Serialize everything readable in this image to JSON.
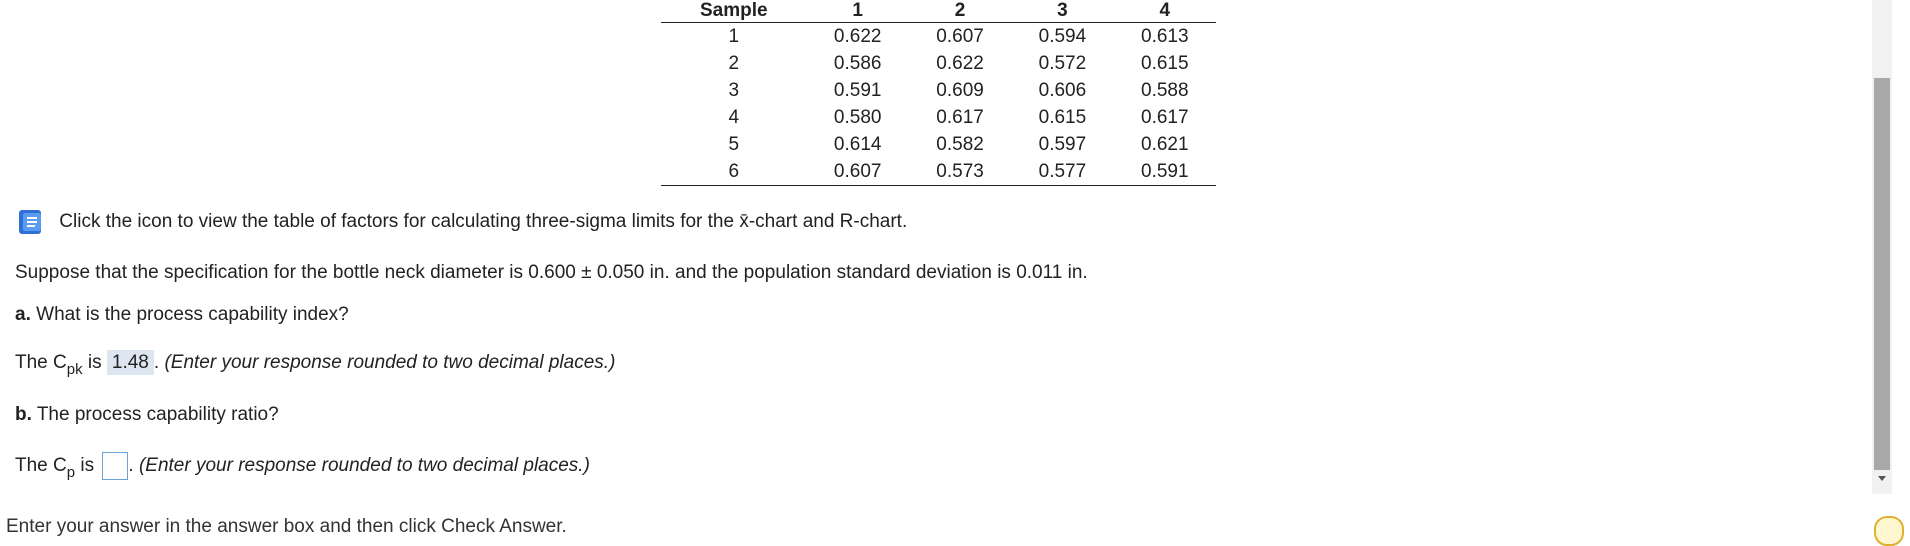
{
  "table": {
    "header": [
      "Sample",
      "1",
      "2",
      "3",
      "4"
    ],
    "rows": [
      [
        "1",
        "0.622",
        "0.607",
        "0.594",
        "0.613"
      ],
      [
        "2",
        "0.586",
        "0.622",
        "0.572",
        "0.615"
      ],
      [
        "3",
        "0.591",
        "0.609",
        "0.606",
        "0.588"
      ],
      [
        "4",
        "0.580",
        "0.617",
        "0.615",
        "0.617"
      ],
      [
        "5",
        "0.614",
        "0.582",
        "0.597",
        "0.621"
      ],
      [
        "6",
        "0.607",
        "0.573",
        "0.577",
        "0.591"
      ]
    ]
  },
  "info_line": "Click the icon to view the table of factors for calculating three-sigma limits for the x̄-chart and R-chart.",
  "specification": "Suppose that the specification for the bottle neck diameter is 0.600 ± 0.050 in. and the population standard deviation is 0.011 in.",
  "question_a": {
    "label": "a.",
    "text": "What is the process capability index?"
  },
  "answer_a": {
    "prefix": "The C",
    "subscript": "pk",
    "middle": "is",
    "answer": "1.48",
    "separator": ".",
    "hint": "(Enter your response rounded to two decimal places.)"
  },
  "question_b": {
    "label": "b.",
    "text": "The process capability ratio?"
  },
  "answer_b": {
    "prefix": "The C",
    "subscript": "p",
    "middle": "is",
    "separator": ".",
    "hint": "(Enter your response rounded to two decimal places.)"
  },
  "footer": "Enter your answer in the answer box and then click Check Answer."
}
